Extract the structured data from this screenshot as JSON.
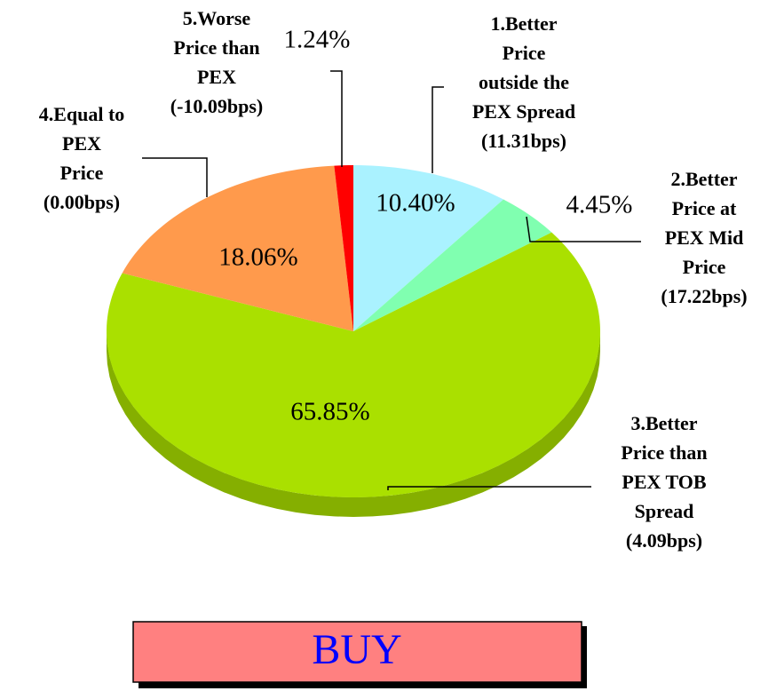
{
  "chart_data": {
    "type": "pie",
    "categories": [
      "1.Better\nPrice\noutside the\nPEX Spread\n(11.31bps)",
      "2.Better\nPrice at\nPEX Mid\nPrice\n(17.22bps)",
      "3.Better\nPrice than\nPEX TOB\nSpread\n(4.09bps)",
      "4.Equal to\nPEX\nPrice\n(0.00bps)",
      "5.Worse\nPrice than\nPEX\n(-10.09bps)"
    ],
    "values": [
      10.4,
      4.45,
      65.85,
      18.06,
      1.24
    ],
    "value_labels": [
      "10.40%",
      "4.45%",
      "65.85%",
      "18.06%",
      "1.24%"
    ],
    "colors": [
      "#aaf2ff",
      "#80ffb0",
      "#aae000",
      "#ff9a4c",
      "#ff0000"
    ]
  },
  "button_label": "BUY"
}
